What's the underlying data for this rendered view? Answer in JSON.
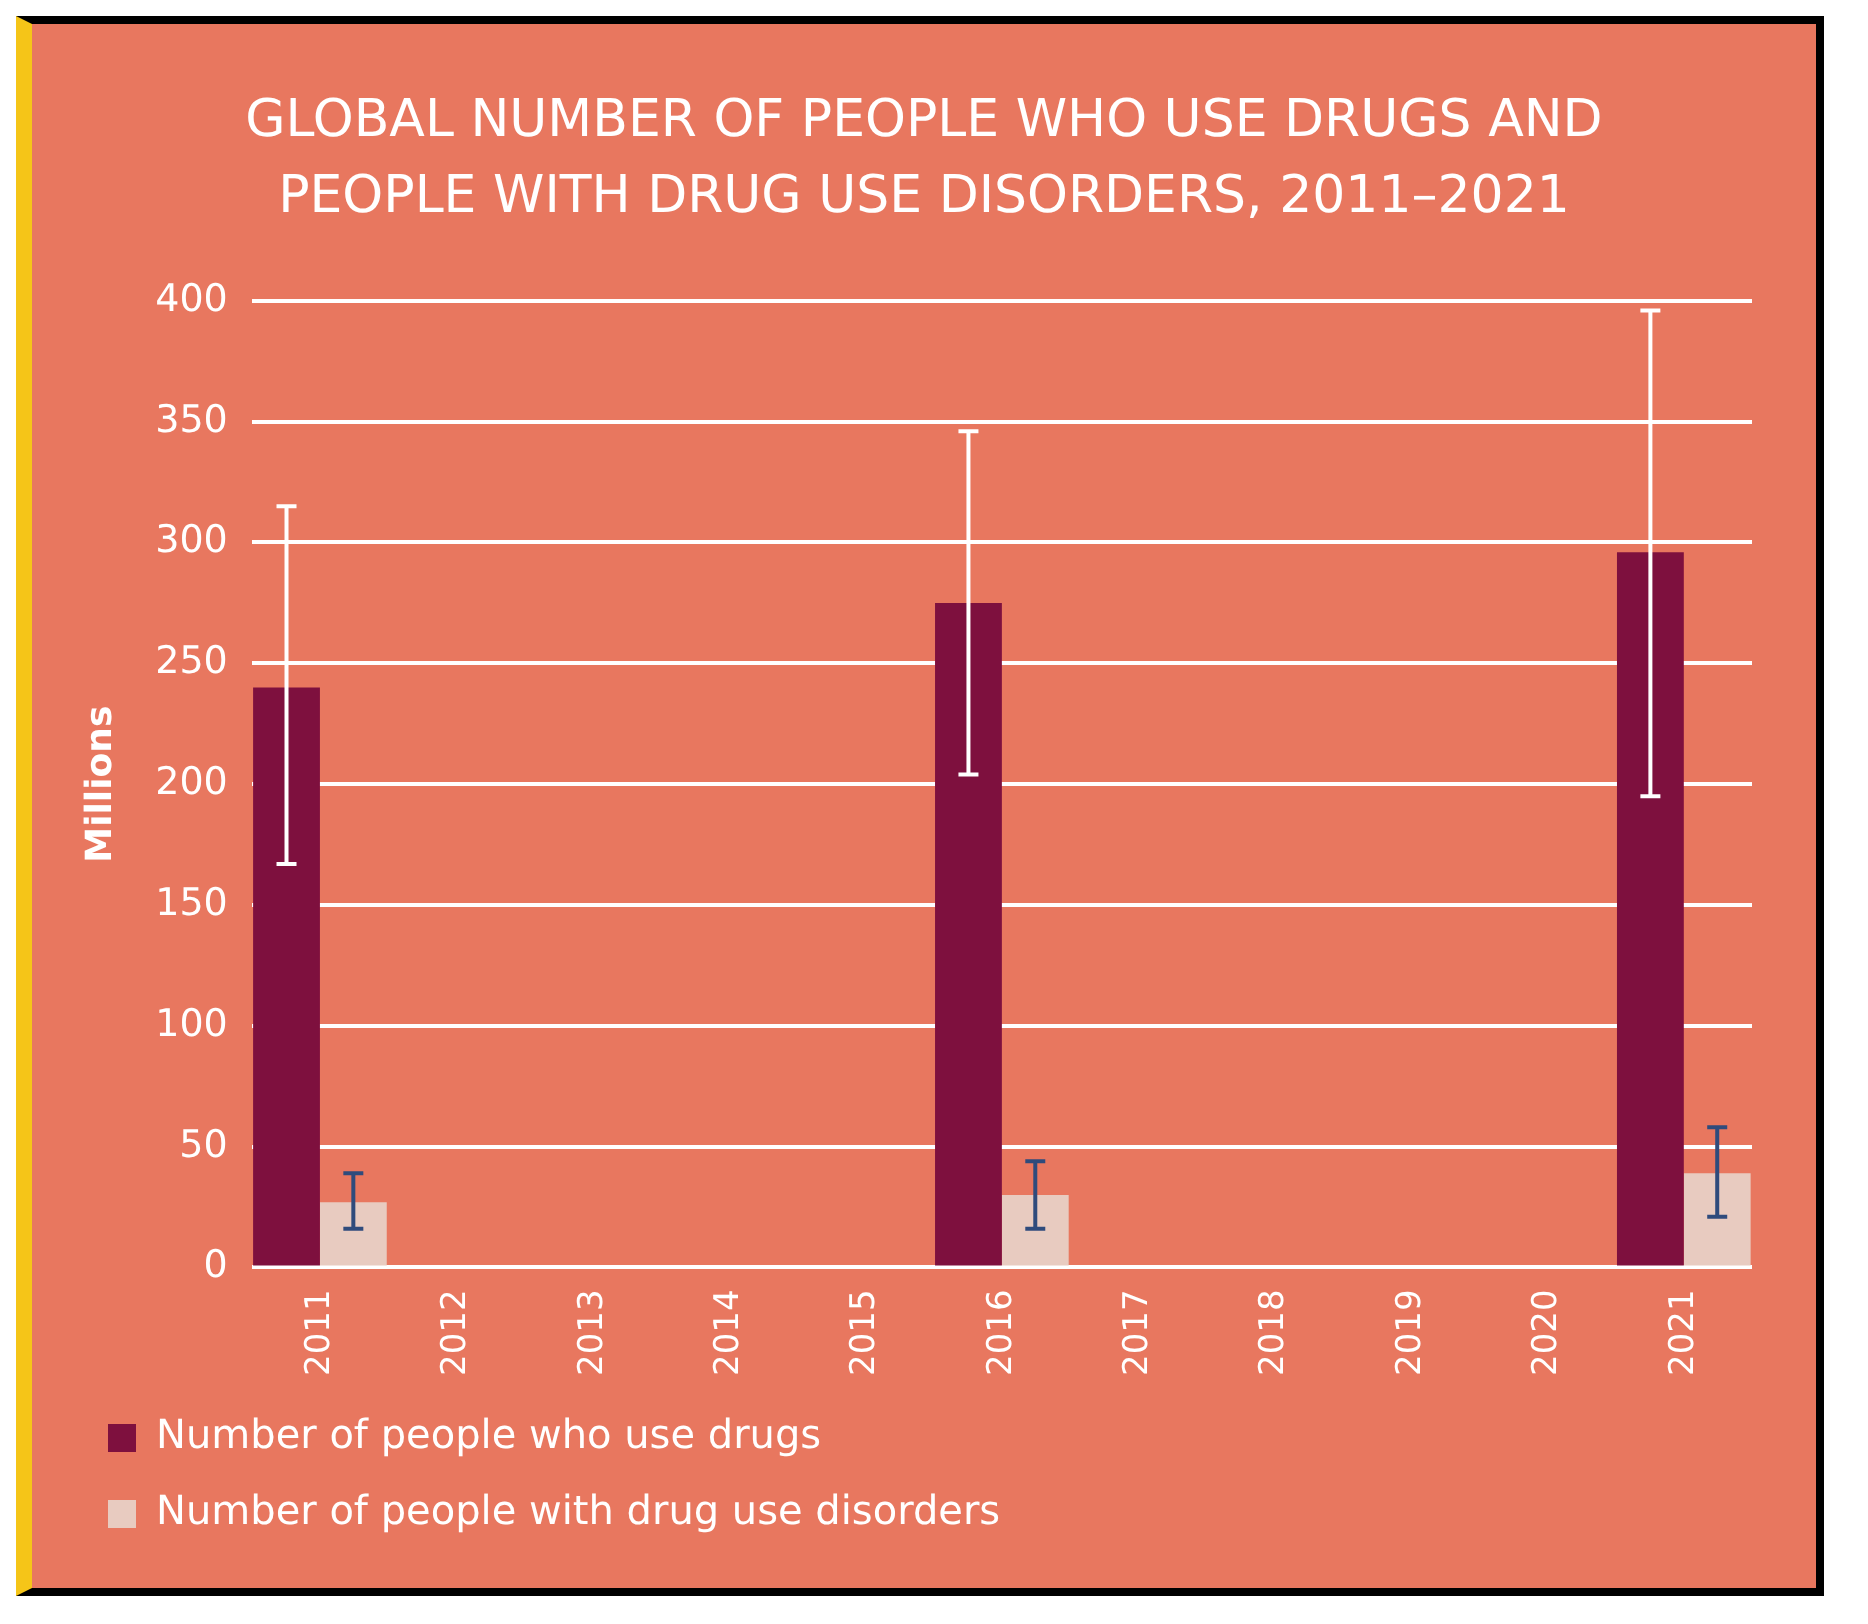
{
  "chart_data": {
    "type": "bar",
    "title": "GLOBAL NUMBER OF PEOPLE WHO USE DRUGS AND PEOPLE WITH DRUG USE DISORDERS, 2011–2021",
    "ylabel": "Millions",
    "categories": [
      "2011",
      "2012",
      "2013",
      "2014",
      "2015",
      "2016",
      "2017",
      "2018",
      "2019",
      "2020",
      "2021"
    ],
    "series": [
      {
        "name": "Number of people who use drugs",
        "color": "#7e103e",
        "values": [
          240,
          null,
          null,
          null,
          null,
          275,
          null,
          null,
          null,
          null,
          296
        ],
        "errors": [
          [
            167,
            315
          ],
          null,
          null,
          null,
          null,
          [
            204,
            346
          ],
          null,
          null,
          null,
          null,
          [
            195,
            396
          ]
        ]
      },
      {
        "name": "Number of people with drug use disorders",
        "color": "#e8cbc0",
        "values": [
          27,
          null,
          null,
          null,
          null,
          30,
          null,
          null,
          null,
          null,
          39
        ],
        "errors": [
          [
            16,
            39
          ],
          null,
          null,
          null,
          null,
          [
            16,
            44
          ],
          null,
          null,
          null,
          null,
          [
            21,
            58
          ]
        ]
      }
    ],
    "ylim": [
      0,
      400
    ],
    "yticks": [
      0,
      50,
      100,
      150,
      200,
      250,
      300,
      350,
      400
    ],
    "grid": "y",
    "legend": "bottom"
  }
}
